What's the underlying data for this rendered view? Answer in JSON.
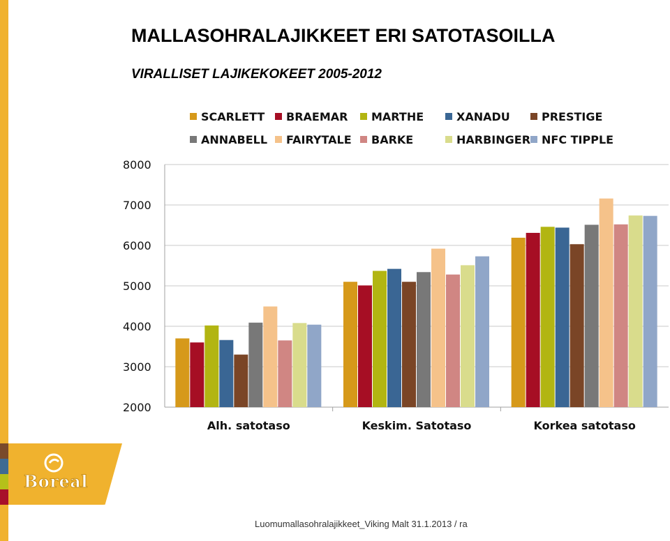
{
  "slide": {
    "title": "MALLASOHRALAJIKKEET ERI SATOTASOILLA",
    "subtitle": "VIRALLISET LAJIKEKOKEET 2005-2012",
    "footer": "Luomumallasohralajikkeet_Viking Malt 31.1.2013 / ra",
    "logo_text": "Boreal",
    "accent_color": "#f0b22e",
    "side_tab_colors": [
      "#7a4a2b",
      "#3f6b93",
      "#b5c01a",
      "#a8102a"
    ]
  },
  "chart_data": {
    "type": "bar",
    "title": "",
    "xlabel": "",
    "ylabel": "",
    "ylim": [
      2000,
      8000
    ],
    "yticks": [
      2000,
      3000,
      4000,
      5000,
      6000,
      7000,
      8000
    ],
    "grid": true,
    "legend_position": "top",
    "categories": [
      "Alh. satotaso",
      "Keskim. Satotaso",
      "Korkea satotaso"
    ],
    "series": [
      {
        "name": "SCARLETT",
        "color": "#d6991a",
        "values": [
          3700,
          5100,
          6190
        ]
      },
      {
        "name": "BRAEMAR",
        "color": "#a60e24",
        "values": [
          3600,
          5010,
          6310
        ]
      },
      {
        "name": "MARTHE",
        "color": "#b2b512",
        "values": [
          4020,
          5370,
          6460
        ]
      },
      {
        "name": "XANADU",
        "color": "#3a6694",
        "values": [
          3660,
          5420,
          6440
        ]
      },
      {
        "name": "PRESTIGE",
        "color": "#7a4526",
        "values": [
          3300,
          5100,
          6030
        ]
      },
      {
        "name": "ANNABELL",
        "color": "#787878",
        "values": [
          4090,
          5340,
          6510
        ]
      },
      {
        "name": "FAIRYTALE",
        "color": "#f5c28a",
        "values": [
          4490,
          5920,
          7160
        ]
      },
      {
        "name": "BARKE",
        "color": "#d08683",
        "values": [
          3650,
          5280,
          6520
        ]
      },
      {
        "name": "HARBINGER",
        "color": "#d9dc8c",
        "values": [
          4080,
          5510,
          6740
        ]
      },
      {
        "name": "NFC TIPPLE",
        "color": "#90a6c8",
        "values": [
          4040,
          5730,
          6730
        ]
      }
    ]
  }
}
